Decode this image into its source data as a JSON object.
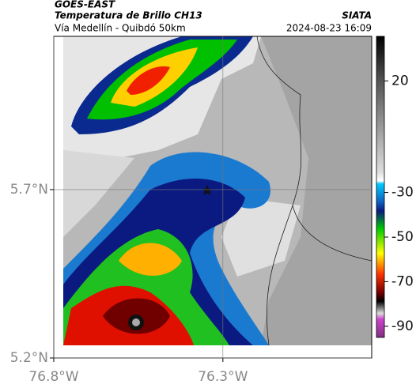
{
  "header": {
    "title": "GOES-EAST",
    "subtitle": "Temperatura de Brillo CH13",
    "route": "Vía Medellín - Quibdó 50km",
    "source": "SIATA",
    "datetime": "2024-08-23 16:09"
  },
  "map": {
    "xlim": [
      -76.8,
      -75.86
    ],
    "ylim": [
      5.2,
      6.155
    ],
    "xticks": [
      {
        "value": -76.8,
        "label": "76.8°W"
      },
      {
        "value": -76.3,
        "label": "76.3°W"
      }
    ],
    "yticks": [
      {
        "value": 5.7,
        "label": "5.7°N"
      },
      {
        "value": 5.2,
        "label": "5.2°N"
      }
    ],
    "grid": true
  },
  "colorbar": {
    "lim": [
      40,
      -95
    ],
    "ticks": [
      20,
      -30,
      -50,
      -70,
      -90
    ]
  }
}
